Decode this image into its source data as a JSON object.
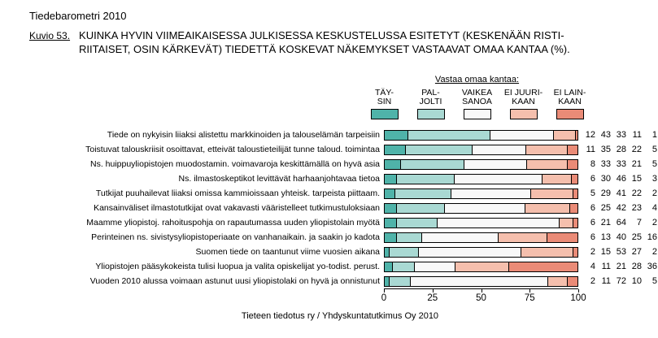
{
  "header": {
    "barometer": "Tiedebarometri 2010",
    "figure_label": "Kuvio 53.",
    "title_line1": "KUINKA HYVIN VIIMEAIKAISESSA JULKISESSA KESKUSTELUSSA ESITETYT (KESKENÄÄN RISTI-",
    "title_line2": "RIITAISET, OSIN KÄRKEVÄT) TIEDETTÄ KOSKEVAT NÄKEMYKSET VASTAAVAT OMAA KANTAA (%)."
  },
  "legend": {
    "title": "Vastaa omaa kantaa:",
    "items": [
      {
        "line1": "TÄY-",
        "line2": "SIN",
        "color": "#4FB3A9"
      },
      {
        "line1": "PAL-",
        "line2": "JOLTI",
        "color": "#A9D9D3"
      },
      {
        "line1": "VAIKEA",
        "line2": "SANOA",
        "color": "#F8F8F8"
      },
      {
        "line1": "EI JUURI-",
        "line2": "KAAN",
        "color": "#F5BFAD"
      },
      {
        "line1": "EI LAIN-",
        "line2": "KAAN",
        "color": "#EA8B77"
      }
    ]
  },
  "chart_data": {
    "type": "bar",
    "orientation": "horizontal",
    "stacked": true,
    "xlim": [
      0,
      100
    ],
    "x_ticks": [
      0,
      25,
      50,
      75,
      100
    ],
    "series_names": [
      "TÄYSIN",
      "PALJOLTI",
      "VAIKEA SANOA",
      "EI JUURIKAAN",
      "EI LAINKAAN"
    ],
    "series_keys": [
      "taysin",
      "paljolti",
      "vaikea-sanoa",
      "ei-juurikaan",
      "ei-lainkaan"
    ],
    "rows": [
      {
        "label": "Tiede on nykyisin liiaksi alistettu markkinoiden ja talouselämän tarpeisiin",
        "values": [
          12,
          43,
          33,
          11,
          1
        ]
      },
      {
        "label": "Toistuvat talouskriisit osoittavat, etteivät taloustieteilijät tunne taloud. toimintaa",
        "values": [
          11,
          35,
          28,
          22,
          5
        ]
      },
      {
        "label": "Ns. huippuyliopistojen muodostamin. voimavaroja keskittämällä on hyvä asia",
        "values": [
          8,
          33,
          33,
          21,
          5
        ]
      },
      {
        "label": "Ns. ilmastoskeptikot levittävät harhaanjohtavaa tietoa",
        "values": [
          6,
          30,
          46,
          15,
          3
        ]
      },
      {
        "label": "Tutkijat puuhailevat liiaksi omissa kammioissaan yhteisk. tarpeista piittaam.",
        "values": [
          5,
          29,
          41,
          22,
          2
        ]
      },
      {
        "label": "Kansainväliset ilmastotutkijat ovat vakavasti vääristelleet tutkimustuloksiaan",
        "values": [
          6,
          25,
          42,
          23,
          4
        ]
      },
      {
        "label": "Maamme yliopistoj. rahoituspohja on rapautumassa uuden yliopistolain myötä",
        "values": [
          6,
          21,
          64,
          7,
          2
        ]
      },
      {
        "label": "Perinteinen ns. sivistysyliopistoperiaate on vanhanaikain. ja saakin jo kadota",
        "values": [
          6,
          13,
          40,
          25,
          16
        ]
      },
      {
        "label": "Suomen tiede on taantunut viime vuosien aikana",
        "values": [
          2,
          15,
          53,
          27,
          2
        ]
      },
      {
        "label": "Yliopistojen pääsykokeista tulisi luopua ja valita opiskelijat yo-todist. perust.",
        "values": [
          4,
          11,
          21,
          28,
          36
        ]
      },
      {
        "label": "Vuoden 2010 alussa voimaan astunut uusi yliopistolaki on hyvä ja onnistunut",
        "values": [
          2,
          11,
          72,
          10,
          5
        ]
      }
    ]
  },
  "footer": {
    "source": "Tieteen tiedotus ry / Yhdyskuntatutkimus Oy 2010"
  }
}
